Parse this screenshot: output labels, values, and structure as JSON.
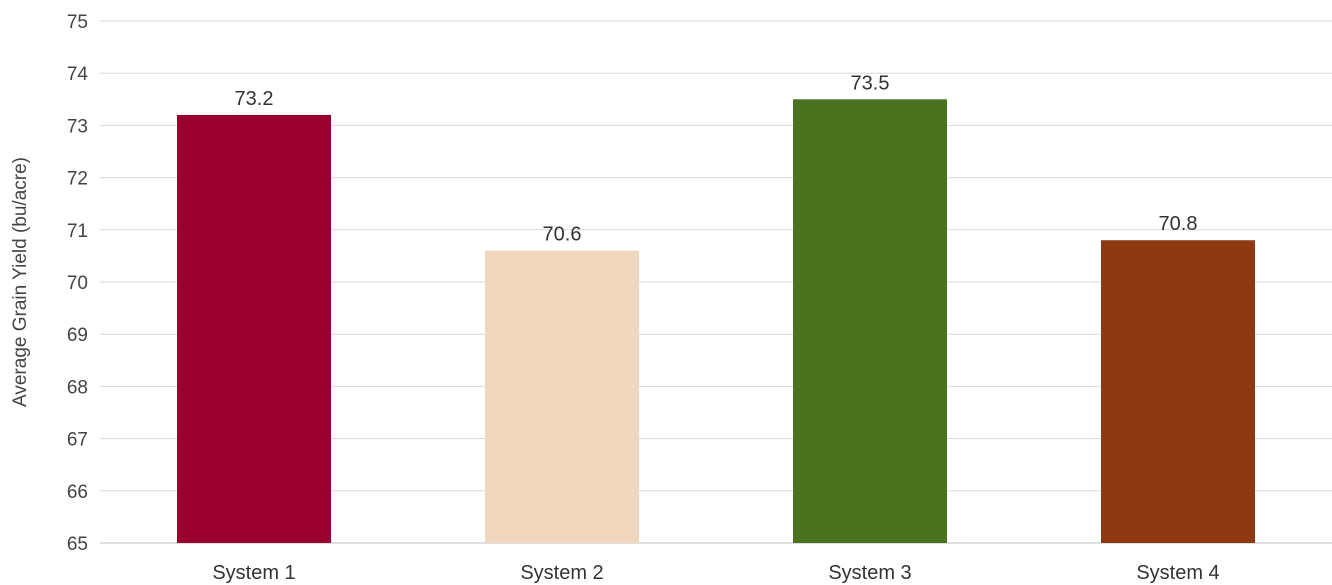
{
  "chart_data": {
    "type": "bar",
    "title": "",
    "xlabel": "",
    "ylabel": "Average Grain Yield (bu/acre)",
    "ylim": [
      65,
      75
    ],
    "yticks": [
      65,
      66,
      67,
      68,
      69,
      70,
      71,
      72,
      73,
      74,
      75
    ],
    "grid": true,
    "legend": "none",
    "categories": [
      "System 1",
      "System 2",
      "System 3",
      "System 4"
    ],
    "values": [
      73.2,
      70.6,
      73.5,
      70.8
    ],
    "value_labels": [
      "73.2",
      "70.6",
      "73.5",
      "70.8"
    ],
    "colors": [
      "#990030",
      "#f0d6bc",
      "#4a7320",
      "#8d3a12"
    ]
  }
}
